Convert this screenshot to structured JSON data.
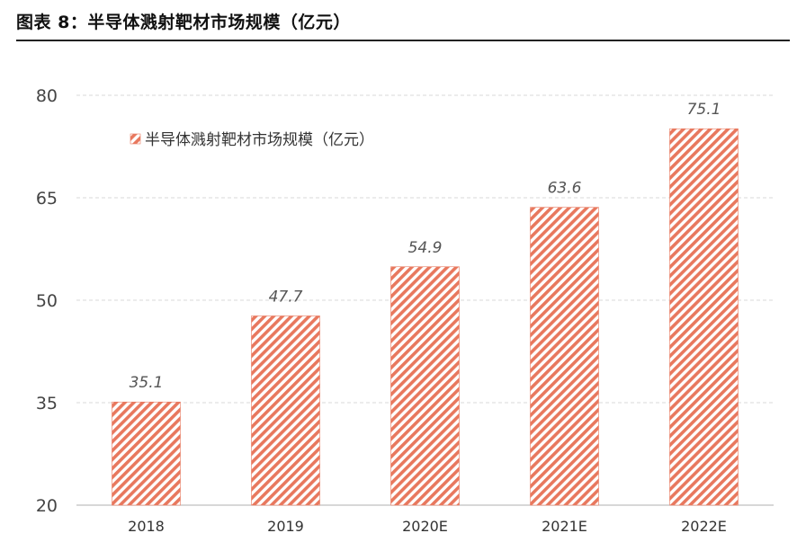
{
  "figure": {
    "title": "图表 8：半导体溅射靶材市场规模（亿元）"
  },
  "chart_data": {
    "type": "bar",
    "categories": [
      "2018",
      "2019",
      "2020E",
      "2021E",
      "2022E"
    ],
    "series": [
      {
        "name": "半导体溅射靶材市场规模（亿元）",
        "values": [
          35.1,
          47.7,
          54.9,
          63.6,
          75.1
        ]
      }
    ],
    "data_labels": [
      "35.1",
      "47.7",
      "54.9",
      "63.6",
      "75.1"
    ],
    "yticks": [
      "20",
      "35",
      "50",
      "65",
      "80"
    ],
    "ylim": [
      20,
      80
    ],
    "grid": true,
    "legend": "top-left",
    "colors": {
      "bar_stripe": "#e8785e",
      "bar_base": "#ffffff",
      "grid": "#d9d9d9"
    }
  }
}
